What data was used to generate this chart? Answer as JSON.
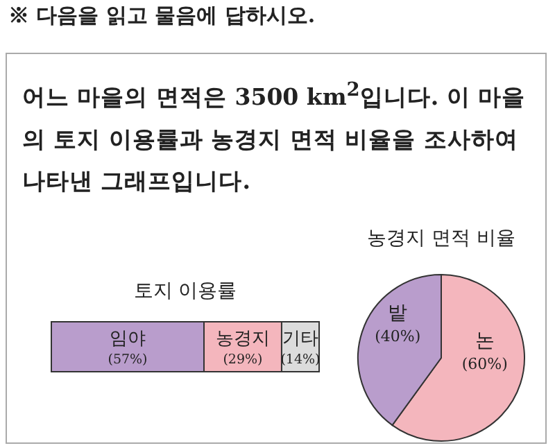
{
  "chart_data": [
    {
      "type": "bar",
      "stacked": true,
      "orientation": "horizontal",
      "title": "토지 이용률",
      "annotations": [
        "※ 다음을 읽고 물음에 답하시오.",
        "어느 마을의 면적은 3500 km$^{2}$입니다. 이 마을의 토지 이용률과 농경지 면적 비율을 조사하여 나타낸 그래프입니다."
      ],
      "categories": [
        null
      ],
      "xlim": [
        0,
        100
      ],
      "series": [
        {
          "name": "임야",
          "color": "#b99dcc",
          "values": [
            57
          ],
          "value_labels": [
            "(57%)"
          ]
        },
        {
          "name": "농경지",
          "color": "#f4b6bd",
          "values": [
            29
          ],
          "value_labels": [
            "(29%)"
          ]
        },
        {
          "name": "기타",
          "color": "#dcdcdc",
          "values": [
            14
          ],
          "value_labels": [
            "(14%)"
          ]
        }
      ]
    },
    {
      "type": "pie",
      "title": "농경지 면적 비율",
      "categories": [
        "논",
        "밭"
      ],
      "values": [
        60,
        40
      ],
      "colors": [
        "#f4b6bd",
        "#b99dcc"
      ],
      "value_labels": [
        "(60%)",
        "(40%)"
      ]
    }
  ]
}
